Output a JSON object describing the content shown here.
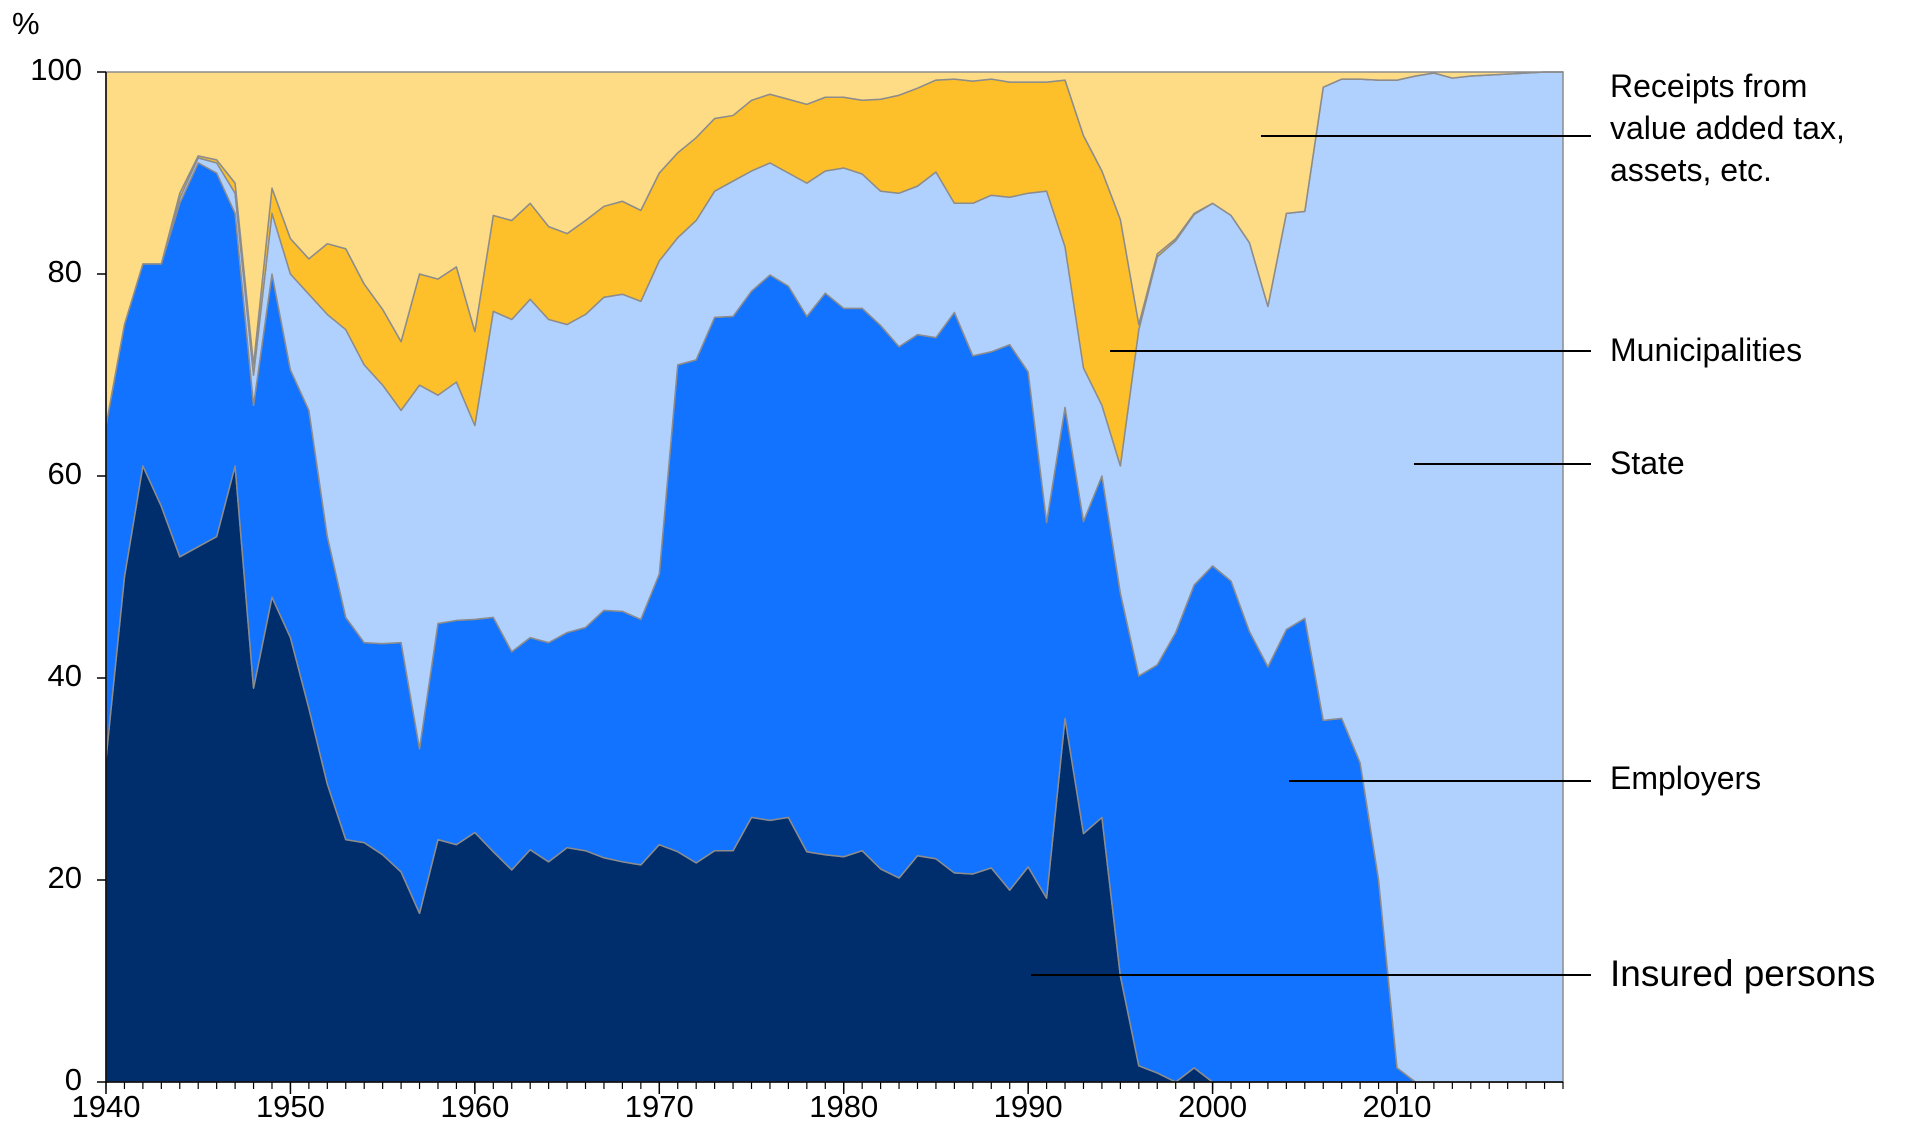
{
  "chart_data": {
    "type": "stacked_area",
    "y_label": "%",
    "x": [
      1940,
      1941,
      1942,
      1943,
      1944,
      1945,
      1946,
      1947,
      1948,
      1949,
      1950,
      1951,
      1952,
      1953,
      1954,
      1955,
      1956,
      1957,
      1958,
      1959,
      1960,
      1961,
      1962,
      1963,
      1964,
      1965,
      1966,
      1967,
      1968,
      1969,
      1970,
      1971,
      1972,
      1973,
      1974,
      1975,
      1976,
      1977,
      1978,
      1979,
      1980,
      1981,
      1982,
      1983,
      1984,
      1985,
      1986,
      1987,
      1988,
      1989,
      1990,
      1991,
      1992,
      1993,
      1994,
      1995,
      1996,
      1997,
      1998,
      1999,
      2000,
      2001,
      2002,
      2003,
      2004,
      2005,
      2006,
      2007,
      2008,
      2009,
      2010,
      2011,
      2012,
      2013,
      2014,
      2015,
      2016,
      2017,
      2018,
      2019
    ],
    "xlim": [
      1940,
      2019
    ],
    "xticks": [
      1940,
      1950,
      1960,
      1970,
      1980,
      1990,
      2000,
      2010
    ],
    "ylim": [
      0,
      100
    ],
    "yticks": [
      0,
      20,
      40,
      60,
      80,
      100
    ],
    "series": [
      {
        "name": "Insured persons",
        "color": "#002d6b",
        "values": [
          32,
          50,
          61,
          57,
          52,
          53,
          54,
          61,
          39,
          48,
          44,
          37,
          29.5,
          24,
          23.7,
          22.5,
          20.8,
          16.7,
          24,
          23.5,
          24.7,
          22.8,
          21,
          23,
          21.8,
          23.2,
          22.9,
          22.2,
          21.8,
          21.5,
          23.5,
          22.8,
          21.7,
          22.9,
          22.9,
          26.2,
          25.9,
          26.2,
          22.8,
          22.5,
          22.3,
          22.9,
          21.1,
          20.2,
          22.4,
          22.1,
          20.7,
          20.6,
          21.2,
          19,
          21.3,
          18.2,
          36,
          24.6,
          26.2,
          10.5,
          1.6,
          0.9,
          0,
          1.4,
          0,
          0,
          0,
          0,
          0,
          0,
          0,
          0,
          0,
          0,
          0,
          0,
          0,
          0,
          0,
          0,
          0,
          0,
          0,
          0
        ]
      },
      {
        "name": "Employers",
        "color": "#1173ff",
        "values": [
          33,
          25,
          20,
          24,
          35,
          38,
          36,
          25,
          28,
          32,
          26.5,
          29.5,
          24.5,
          22,
          19.8,
          20.9,
          22.7,
          16.3,
          21.4,
          22.2,
          21.1,
          23.2,
          21.6,
          21,
          21.7,
          21.3,
          22.1,
          24.5,
          24.8,
          24.3,
          26.8,
          48.2,
          49.8,
          52.8,
          52.9,
          52.1,
          54,
          52.6,
          53,
          55.6,
          54.3,
          53.7,
          53.8,
          52.6,
          51.6,
          51.6,
          55.5,
          51.3,
          51.1,
          54,
          49,
          37.2,
          30.8,
          30.9,
          33.8,
          37.9,
          38.6,
          40.4,
          44.5,
          47.8,
          51.1,
          49.6,
          44.6,
          41.1,
          44.8,
          45.9,
          35.8,
          36,
          31.6,
          20,
          1.4,
          0,
          0,
          0,
          0,
          0,
          0,
          0,
          0,
          0
        ]
      },
      {
        "name": "State",
        "color": "#b0d0fe",
        "values": [
          0,
          0,
          0,
          0,
          0.5,
          0.5,
          1,
          2,
          3,
          6,
          9.5,
          11.5,
          22,
          28.5,
          27.5,
          25.6,
          23,
          36,
          22.6,
          23.6,
          19.2,
          30.3,
          32.9,
          33.5,
          32,
          30.5,
          31,
          31,
          31.4,
          31.5,
          31,
          12.6,
          13.8,
          12.5,
          13.4,
          11.9,
          11.1,
          11.2,
          13.2,
          12.1,
          13.9,
          13.3,
          13.3,
          15.2,
          14.7,
          16.4,
          10.8,
          15.1,
          15.5,
          14.6,
          17.7,
          32.8,
          15.9,
          15.2,
          7,
          12.6,
          34.3,
          40.4,
          38.8,
          36.7,
          35.9,
          36.2,
          38.5,
          35.7,
          41.2,
          40.3,
          62.7,
          63.3,
          67.7,
          79.2,
          97.8,
          99.6,
          99.9,
          99.4,
          99.6,
          99.7,
          99.8,
          99.9,
          100,
          100
        ]
      },
      {
        "name": "Municipalities",
        "color": "#fdc02a",
        "values": [
          0,
          0,
          0,
          0,
          0.5,
          0.2,
          0.3,
          1,
          1,
          2.5,
          3.5,
          3.5,
          7,
          8,
          8,
          7.5,
          6.8,
          11,
          11.5,
          11.4,
          9.3,
          9.5,
          9.8,
          9.5,
          9.2,
          9,
          9.3,
          9,
          9.2,
          9,
          8.7,
          8.4,
          8.2,
          7.2,
          6.5,
          7,
          6.8,
          7.3,
          7.8,
          7.3,
          7,
          7.3,
          9.1,
          9.7,
          9.7,
          9.1,
          12.3,
          12.1,
          11.5,
          11.4,
          11,
          10.8,
          16.5,
          23,
          23.2,
          24.4,
          0.5,
          0.3,
          0.2,
          0.1,
          0,
          0,
          0,
          0,
          0,
          0,
          0,
          0,
          0,
          0,
          0,
          0,
          0,
          0,
          0,
          0,
          0,
          0,
          0,
          0
        ]
      },
      {
        "name": "Receipts from value added tax, assets, etc.",
        "color": "#fedc86",
        "values": [
          35,
          25,
          19,
          19,
          12,
          8.3,
          8.7,
          11,
          29,
          11.5,
          16.5,
          18.5,
          17,
          17.5,
          21,
          23.5,
          26.7,
          20,
          20.5,
          19.3,
          25.7,
          14.2,
          14.7,
          13,
          15.3,
          16,
          14.7,
          13.3,
          12.8,
          13.7,
          10,
          8,
          6.5,
          4.6,
          4.3,
          2.8,
          2.2,
          2.7,
          3.2,
          2.5,
          2.5,
          2.8,
          2.7,
          2.3,
          1.6,
          0.8,
          0.7,
          0.9,
          0.7,
          1,
          1,
          1,
          0.8,
          6.3,
          9.8,
          14.6,
          25,
          18,
          16.5,
          14,
          13,
          14.2,
          16.9,
          23.2,
          14,
          13.8,
          1.5,
          0.7,
          0.7,
          0.8,
          0.8,
          0.4,
          0.1,
          0.6,
          0.4,
          0.3,
          0.2,
          0.1,
          0,
          0
        ]
      }
    ]
  }
}
